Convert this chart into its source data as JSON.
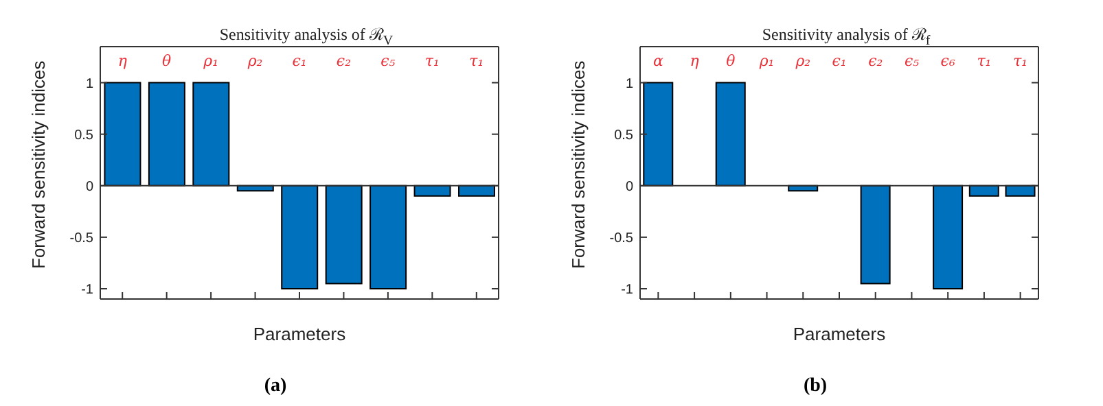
{
  "chart_data": [
    {
      "type": "bar",
      "title": "Sensitivity analysis of ℛ$_{V}$",
      "xlabel": "Parameters",
      "ylabel": "Forward sensitivity indices",
      "categories": [
        "η",
        "θ",
        "ρ₁",
        "ρ₂",
        "ϵ₁",
        "ϵ₂",
        "ϵ₅",
        "τ₁",
        "τ₁"
      ],
      "values": [
        1,
        1,
        1,
        -0.05,
        -1,
        -0.95,
        -1,
        -0.1,
        -0.1
      ],
      "color": "#0072bd",
      "ylim": [
        -1.1,
        1.35
      ],
      "yticks": [
        -1,
        -0.5,
        0,
        0.5,
        1
      ],
      "ref_lines": [
        {
          "axis": "y",
          "value": 0
        }
      ],
      "annotations": [
        "(a)"
      ],
      "grid": false
    },
    {
      "type": "bar",
      "title": "Sensitivity analysis of ℛ$_{f}$",
      "xlabel": "Parameters",
      "ylabel": "Forward sensitivity indices",
      "categories": [
        "α",
        "η",
        "θ",
        "ρ₁",
        "ρ₂",
        "ϵ₁",
        "ϵ₂",
        "ϵ₅",
        "ϵ₆",
        "τ₁",
        "τ₁"
      ],
      "values": [
        1,
        0,
        1,
        0,
        -0.05,
        0,
        -0.95,
        0,
        -1,
        -0.1,
        -0.1
      ],
      "color": "#0072bd",
      "ylim": [
        -1.1,
        1.35
      ],
      "yticks": [
        -1,
        -0.5,
        0,
        0.5,
        1
      ],
      "ref_lines": [
        {
          "axis": "y",
          "value": 0
        }
      ],
      "annotations": [
        "(b)"
      ],
      "grid": false
    }
  ]
}
